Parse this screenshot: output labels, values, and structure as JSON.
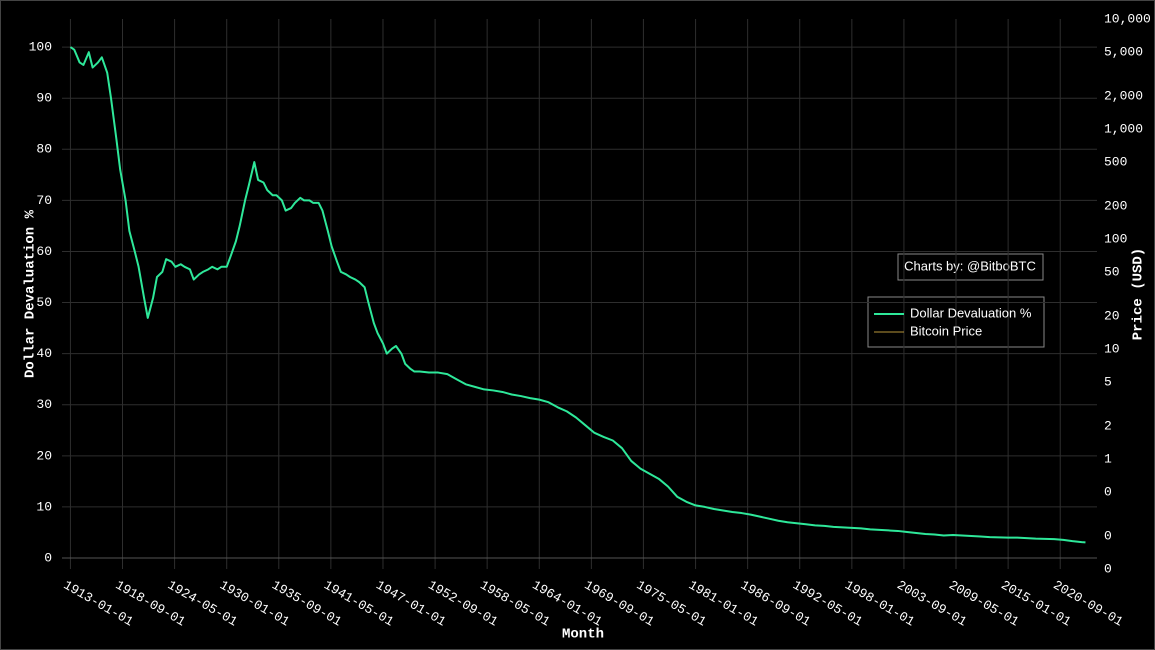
{
  "chart_data": {
    "type": "line",
    "x_label": "Month",
    "y_label": "Dollar Devaluation %",
    "y2_label": "Price (USD)",
    "annotation": "Charts by: @BitboBTC",
    "xlim": [
      "1912-02-01",
      "2024-09-01"
    ],
    "xticks": [
      "1913-01-01",
      "1918-09-01",
      "1924-05-01",
      "1930-01-01",
      "1935-09-01",
      "1941-05-01",
      "1947-01-01",
      "1952-09-01",
      "1958-05-01",
      "1964-01-01",
      "1969-09-01",
      "1975-05-01",
      "1981-01-01",
      "1986-09-01",
      "1992-05-01",
      "1998-01-01",
      "2003-09-01",
      "2009-05-01",
      "2015-01-01",
      "2020-09-01"
    ],
    "ylim": [
      -2.15,
      105.5
    ],
    "yticks": [
      0,
      10,
      20,
      30,
      40,
      50,
      60,
      70,
      80,
      90,
      100
    ],
    "y2lim": [
      0.1,
      10000
    ],
    "y2_log": true,
    "y2ticks": [
      {
        "value": 10000,
        "label": "10,000"
      },
      {
        "value": 5000,
        "label": "5,000"
      },
      {
        "value": 2000,
        "label": "2,000"
      },
      {
        "value": 1000,
        "label": "1,000"
      },
      500,
      200,
      100,
      50,
      20,
      10,
      5,
      2,
      1,
      {
        "value": 0.5,
        "label": "0"
      },
      {
        "value": 0.2,
        "label": "0"
      },
      {
        "value": 0.1,
        "label": "0"
      }
    ],
    "grid": true,
    "legend_position": "right",
    "x": [
      "1913-01-01",
      "1913-06-01",
      "1914-01-01",
      "1914-06-01",
      "1915-01-01",
      "1915-06-01",
      "1916-01-01",
      "1916-06-01",
      "1917-01-01",
      "1917-06-01",
      "1918-01-01",
      "1918-06-01",
      "1919-01-01",
      "1919-06-01",
      "1920-01-01",
      "1920-06-01",
      "1921-01-01",
      "1921-06-01",
      "1922-01-01",
      "1922-06-01",
      "1923-01-01",
      "1923-06-01",
      "1924-01-01",
      "1924-06-01",
      "1925-01-01",
      "1925-06-01",
      "1926-01-01",
      "1926-06-01",
      "1927-01-01",
      "1927-06-01",
      "1928-01-01",
      "1928-06-01",
      "1929-01-01",
      "1929-06-01",
      "1930-01-01",
      "1930-06-01",
      "1931-01-01",
      "1931-06-01",
      "1932-01-01",
      "1932-06-01",
      "1933-01-01",
      "1933-06-01",
      "1934-01-01",
      "1934-06-01",
      "1935-01-01",
      "1935-06-01",
      "1936-01-01",
      "1936-06-01",
      "1937-01-01",
      "1937-06-01",
      "1938-01-01",
      "1938-06-01",
      "1939-01-01",
      "1939-06-01",
      "1940-01-01",
      "1940-06-01",
      "1941-01-01",
      "1941-06-01",
      "1942-01-01",
      "1942-06-01",
      "1943-01-01",
      "1943-06-01",
      "1944-01-01",
      "1944-06-01",
      "1945-01-01",
      "1945-06-01",
      "1946-01-01",
      "1946-06-01",
      "1947-01-01",
      "1947-06-01",
      "1948-01-01",
      "1948-06-01",
      "1949-01-01",
      "1949-06-01",
      "1950-01-01",
      "1950-06-01",
      "1951-01-01",
      "1952-01-01",
      "1953-01-01",
      "1954-01-01",
      "1955-01-01",
      "1956-01-01",
      "1957-01-01",
      "1958-01-01",
      "1959-01-01",
      "1960-01-01",
      "1961-01-01",
      "1962-01-01",
      "1963-01-01",
      "1964-01-01",
      "1965-01-01",
      "1966-01-01",
      "1967-01-01",
      "1968-01-01",
      "1969-01-01",
      "1970-01-01",
      "1971-01-01",
      "1972-01-01",
      "1973-01-01",
      "1974-01-01",
      "1975-01-01",
      "1976-01-01",
      "1977-01-01",
      "1978-01-01",
      "1979-01-01",
      "1980-01-01",
      "1981-01-01",
      "1982-01-01",
      "1983-01-01",
      "1984-01-01",
      "1985-01-01",
      "1986-01-01",
      "1987-01-01",
      "1988-01-01",
      "1989-01-01",
      "1990-01-01",
      "1991-01-01",
      "1992-01-01",
      "1993-01-01",
      "1994-01-01",
      "1995-01-01",
      "1996-01-01",
      "1997-01-01",
      "1998-01-01",
      "1999-01-01",
      "2000-01-01",
      "2001-01-01",
      "2002-01-01",
      "2003-01-01",
      "2004-01-01",
      "2005-01-01",
      "2006-01-01",
      "2007-01-01",
      "2008-01-01",
      "2009-01-01",
      "2010-01-01",
      "2011-01-01",
      "2012-01-01",
      "2013-01-01",
      "2014-01-01",
      "2015-01-01",
      "2016-01-01",
      "2017-01-01",
      "2018-01-01",
      "2019-01-01",
      "2020-01-01",
      "2021-01-01",
      "2022-01-01",
      "2023-01-01",
      "2023-06-01"
    ],
    "series": [
      {
        "name": "Dollar Devaluation %",
        "color": "#2ee89a",
        "values": [
          100,
          99.5,
          97,
          96.5,
          99,
          96,
          97,
          98,
          95,
          90,
          82,
          76,
          70,
          64,
          60,
          57,
          51,
          47,
          51,
          55,
          56,
          58.5,
          58,
          57,
          57.5,
          57,
          56.5,
          54.5,
          55.5,
          56,
          56.5,
          57,
          56.5,
          57,
          57,
          59,
          62,
          65,
          70,
          73,
          77.5,
          74,
          73.5,
          72,
          71,
          71,
          70,
          68,
          68.5,
          69.5,
          70.5,
          70,
          70,
          69.5,
          69.5,
          68,
          64,
          61,
          58,
          56,
          55.5,
          55,
          54.5,
          54,
          53,
          50,
          46,
          44,
          42,
          40,
          41,
          41.5,
          40,
          38,
          37,
          36.5,
          36.5,
          36.3,
          36.3,
          36,
          35,
          34,
          33.5,
          33,
          32.8,
          32.5,
          32,
          31.7,
          31.3,
          31,
          30.5,
          29.5,
          28.7,
          27.5,
          26,
          24.5,
          23.7,
          23,
          21.5,
          19,
          17.5,
          16.5,
          15.5,
          14,
          12,
          11,
          10.3,
          10,
          9.6,
          9.3,
          9,
          8.8,
          8.5,
          8.1,
          7.7,
          7.3,
          7,
          6.8,
          6.6,
          6.4,
          6.3,
          6.1,
          6,
          5.9,
          5.8,
          5.6,
          5.5,
          5.4,
          5.3,
          5.1,
          4.9,
          4.7,
          4.6,
          4.4,
          4.5,
          4.4,
          4.3,
          4.2,
          4.1,
          4.05,
          4,
          4,
          3.9,
          3.8,
          3.75,
          3.7,
          3.55,
          3.3,
          3.1,
          3.05
        ]
      },
      {
        "name": "Bitcoin Price",
        "color": "#b8963a",
        "axis": "y2",
        "values": [
          null,
          null,
          null,
          null,
          null,
          null,
          null,
          null,
          null,
          null,
          null,
          null,
          null,
          null,
          null,
          null,
          null,
          null,
          null,
          null,
          null,
          null,
          null,
          null,
          null,
          null,
          null,
          null,
          null,
          null,
          null,
          null,
          null,
          null,
          null,
          null,
          null,
          null,
          null,
          null,
          null,
          null,
          null,
          null,
          null,
          null,
          null,
          null,
          null,
          null,
          null,
          null,
          null,
          null,
          null,
          null,
          null,
          null,
          null,
          null,
          null,
          null,
          null,
          null,
          null,
          null,
          null,
          null,
          null,
          null,
          null,
          null,
          null,
          null,
          null,
          null,
          null,
          null,
          null,
          null,
          null,
          null,
          null,
          null,
          null,
          null,
          null,
          null,
          null,
          null,
          null,
          null,
          null,
          null,
          null,
          null,
          null,
          null,
          null,
          null,
          null,
          null,
          null,
          null,
          null,
          null,
          null,
          null,
          null,
          null,
          null,
          null,
          null,
          null,
          null,
          null,
          null,
          null,
          null,
          null,
          null,
          null,
          null,
          null,
          null,
          null,
          null,
          null,
          null,
          null,
          null,
          null,
          null,
          null,
          null,
          null,
          null,
          null,
          null,
          null,
          null,
          null,
          null,
          null,
          null,
          null,
          null,
          null,
          null,
          null
        ]
      }
    ]
  }
}
